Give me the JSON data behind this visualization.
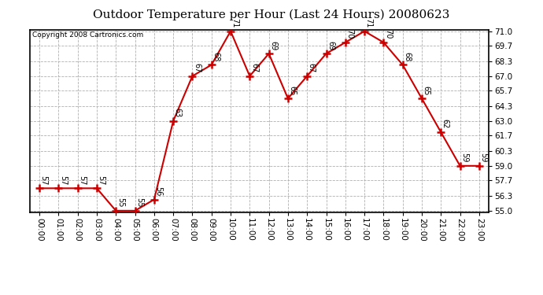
{
  "title": "Outdoor Temperature per Hour (Last 24 Hours) 20080623",
  "copyright": "Copyright 2008 Cartronics.com",
  "hours": [
    "00:00",
    "01:00",
    "02:00",
    "03:00",
    "04:00",
    "05:00",
    "06:00",
    "07:00",
    "08:00",
    "09:00",
    "10:00",
    "11:00",
    "12:00",
    "13:00",
    "14:00",
    "15:00",
    "16:00",
    "17:00",
    "18:00",
    "19:00",
    "20:00",
    "21:00",
    "22:00",
    "23:00"
  ],
  "temps": [
    57,
    57,
    57,
    57,
    55,
    55,
    56,
    63,
    67,
    68,
    71,
    67,
    69,
    65,
    67,
    69,
    70,
    71,
    70,
    68,
    65,
    62,
    59,
    59
  ],
  "ylim_min": 55.0,
  "ylim_max": 71.0,
  "yticks": [
    55.0,
    56.3,
    57.7,
    59.0,
    60.3,
    61.7,
    63.0,
    64.3,
    65.7,
    67.0,
    68.3,
    69.7,
    71.0
  ],
  "line_color": "#cc0000",
  "marker_color": "#cc0000",
  "bg_color": "#ffffff",
  "grid_color": "#b0b0b0",
  "title_fontsize": 11,
  "label_fontsize": 7,
  "tick_fontsize": 7.5,
  "copyright_fontsize": 6.5
}
